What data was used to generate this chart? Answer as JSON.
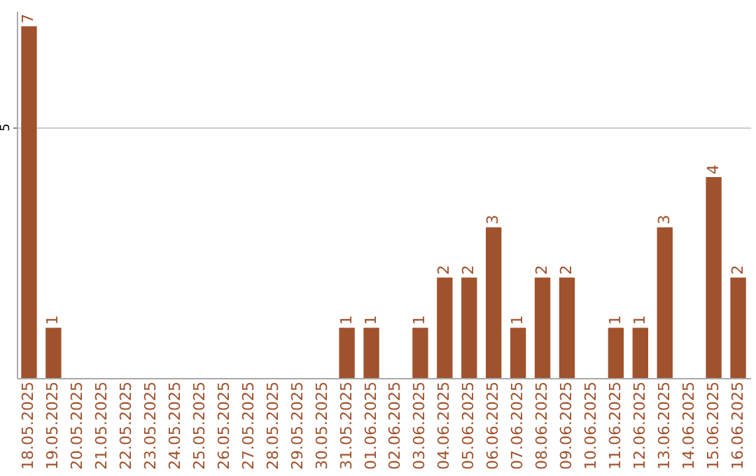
{
  "chart_data": {
    "type": "bar",
    "categories": [
      "18.05.2025",
      "19.05.2025",
      "20.05.2025",
      "21.05.2025",
      "22.05.2025",
      "23.05.2025",
      "24.05.2025",
      "25.05.2025",
      "26.05.2025",
      "27.05.2025",
      "28.05.2025",
      "29.05.2025",
      "30.05.2025",
      "31.05.2025",
      "01.06.2025",
      "02.06.2025",
      "03.06.2025",
      "04.06.2025",
      "05.06.2025",
      "06.06.2025",
      "07.06.2025",
      "08.06.2025",
      "09.06.2025",
      "10.06.2025",
      "11.06.2025",
      "12.06.2025",
      "13.06.2025",
      "14.06.2025",
      "15.06.2025",
      "16.06.2025"
    ],
    "values": [
      7,
      1,
      0,
      0,
      0,
      0,
      0,
      0,
      0,
      0,
      0,
      0,
      0,
      1,
      1,
      0,
      1,
      2,
      2,
      3,
      1,
      2,
      2,
      0,
      1,
      1,
      3,
      0,
      4,
      2
    ],
    "value_labels": [
      "7",
      "1",
      null,
      null,
      null,
      null,
      null,
      null,
      null,
      null,
      null,
      null,
      null,
      "1",
      "1",
      null,
      "1",
      "2",
      "2",
      "3",
      "1",
      "2",
      "2",
      null,
      "1",
      "1",
      "3",
      null,
      "4",
      "2"
    ],
    "color": "#a0522d",
    "ylim": [
      0,
      7.3
    ],
    "yticks": [
      5
    ],
    "grid": "y"
  }
}
